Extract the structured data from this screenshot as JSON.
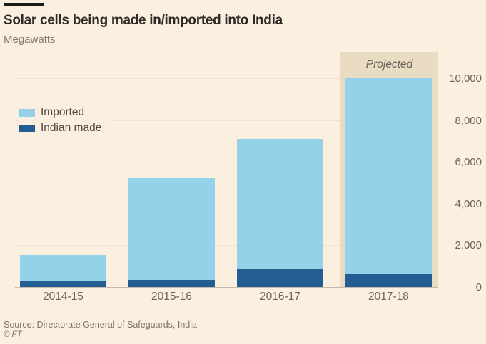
{
  "header": {
    "title": "Solar cells being made in/imported into India",
    "units": "Megawatts"
  },
  "legend": {
    "items": [
      {
        "label": "Imported",
        "color": "#93d2e8"
      },
      {
        "label": "Indian made",
        "color": "#235e93"
      }
    ]
  },
  "chart_data": {
    "type": "bar",
    "stacked": true,
    "title": "Solar cells being made in/imported into India",
    "ylabel": "Megawatts",
    "xlabel": "",
    "categories": [
      "2014-15",
      "2015-16",
      "2016-17",
      "2017-18"
    ],
    "series": [
      {
        "name": "Imported",
        "color": "#93d2e8",
        "values": [
          1250,
          4900,
          6200,
          9400
        ]
      },
      {
        "name": "Indian made",
        "color": "#235e93",
        "values": [
          300,
          330,
          900,
          600
        ]
      }
    ],
    "stack_order_bottom_to_top": [
      "Indian made",
      "Imported"
    ],
    "stack_totals": [
      1550,
      5230,
      7100,
      10000
    ],
    "y_axis": {
      "side": "right",
      "range": [
        0,
        11200
      ],
      "ticks": [
        {
          "value": 0,
          "label": "0"
        },
        {
          "value": 2000,
          "label": "2,000"
        },
        {
          "value": 4000,
          "label": "4,000"
        },
        {
          "value": 6000,
          "label": "6,000"
        },
        {
          "value": 8000,
          "label": "8,000"
        },
        {
          "value": 10000,
          "label": "10,000"
        }
      ]
    },
    "annotation": {
      "text": "Projected",
      "category": "2017-18",
      "band_color": "#e9dcc2"
    },
    "legend_position": "upper-left-inside",
    "grid": true
  },
  "footer": {
    "source": "Source: Directorate General of Safeguards, India",
    "credit": "© FT"
  },
  "colors": {
    "background": "#fbf0df",
    "imported": "#93d2e8",
    "indian_made": "#235e93",
    "projected_band": "#e9dcc2",
    "title_text": "#2d2a27",
    "muted_text": "#6b645c",
    "gridline": "#eee1cd",
    "axis_line": "#c6bbaa"
  }
}
